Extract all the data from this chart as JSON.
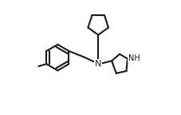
{
  "bg_color": "#ffffff",
  "line_color": "#1a1a1a",
  "line_width": 1.5,
  "font_size": 7,
  "nh_label": "NH",
  "n_label": "N",
  "figsize": [
    2.28,
    1.44
  ],
  "dpi": 100
}
